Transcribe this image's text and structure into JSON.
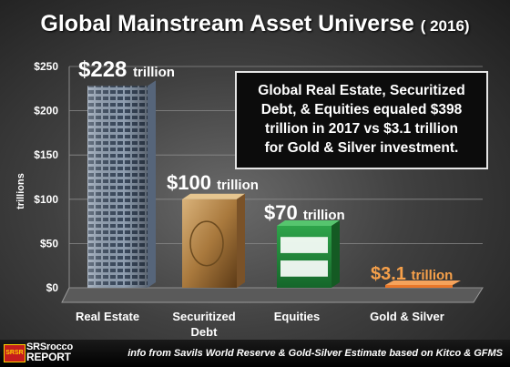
{
  "header": {
    "title": "Global Mainstream Asset Universe",
    "year": "( 2016)"
  },
  "annotation": {
    "lines": [
      "Global Real Estate, Securitized",
      "Debt, & Equities equaled $398",
      "trillion in 2017 vs $3.1 trillion",
      "for Gold & Silver investment."
    ]
  },
  "footer": {
    "source": "info from Savils World Reserve & Gold-Silver Estimate based on Kitco & GFMS",
    "logo_line1": "SRSrocco",
    "logo_line2": "REPORT",
    "logo_badge": "SRSR"
  },
  "chart_data": {
    "type": "bar",
    "ylabel": "trillions",
    "ylim": [
      0,
      250
    ],
    "yticks": [
      "$0",
      "$50",
      "$100",
      "$150",
      "$200",
      "$250"
    ],
    "categories": [
      "Real Estate",
      "Securitized Debt",
      "Equities",
      "Gold & Silver"
    ],
    "category_lines": [
      [
        "Real Estate"
      ],
      [
        "Securitized",
        "Debt"
      ],
      [
        "Equities"
      ],
      [
        "Gold & Silver"
      ]
    ],
    "values": [
      228,
      100,
      70,
      3.1
    ],
    "data_labels": [
      {
        "value": "$228",
        "unit": "trillion"
      },
      {
        "value": "$100",
        "unit": "trillion"
      },
      {
        "value": "$70",
        "unit": "trillion"
      },
      {
        "value": "$3.1",
        "unit": "trillion"
      }
    ],
    "grid": true,
    "colors": {
      "gold_silver": "#e8772a",
      "grid": "#8a8a8a",
      "axis_text": "#ffffff"
    }
  }
}
